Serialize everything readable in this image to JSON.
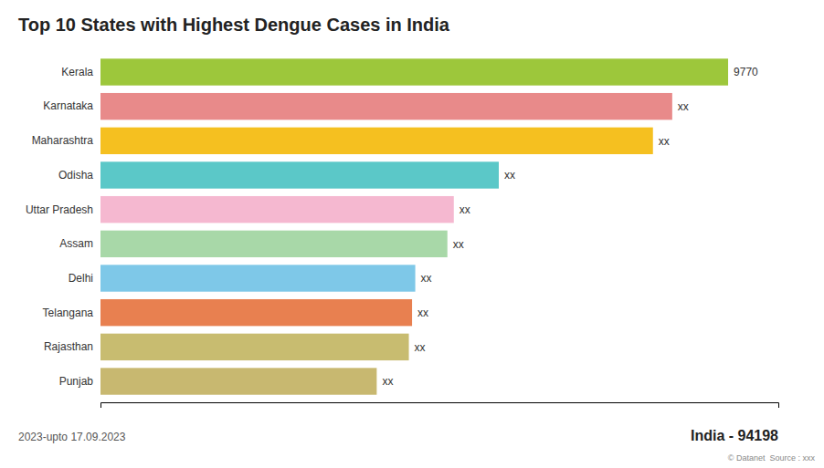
{
  "chart_data": {
    "type": "bar",
    "orientation": "horizontal",
    "title": "Top 10 States with Highest Dengue Cases in India",
    "categories": [
      "Kerala",
      "Karnataka",
      "Maharashtra",
      "Odisha",
      "Uttar Pradesh",
      "Assam",
      "Delhi",
      "Telangana",
      "Rajasthan",
      "Punjab"
    ],
    "values": [
      9770,
      8900,
      8600,
      6200,
      5500,
      5400,
      4900,
      4850,
      4800,
      4300
    ],
    "value_labels": [
      "9770",
      "xx",
      "xx",
      "xx",
      "xx",
      "xx",
      "xx",
      "xx",
      "xx",
      "xx"
    ],
    "data_labels": true,
    "colors": [
      "#9dc73b",
      "#e88a8a",
      "#f5c020",
      "#5bc8c8",
      "#f5b8d0",
      "#a8d8a8",
      "#7ec8e8",
      "#e88050",
      "#c8bc70",
      "#c8b870"
    ],
    "xlim": [
      0,
      10551.6
    ],
    "tick_labels": false,
    "grid": false,
    "annotations": [
      "2023-upto 17.09.2023",
      "India - 94198",
      "© Datanet  Source : xxx"
    ]
  }
}
